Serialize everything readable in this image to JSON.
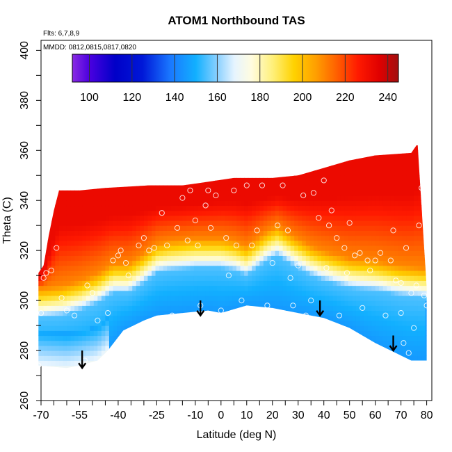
{
  "chart_data": {
    "type": "heatmap",
    "title": "ATOM1 Northbound TAS",
    "flights_note": "Flts: 6,7,8,9",
    "dates_note": "MMDD: 0812,0815,0817,0820",
    "xlabel": "Latitude (deg N)",
    "ylabel": "Theta (C)",
    "xlim": [
      -70,
      82
    ],
    "ylim": [
      260,
      404
    ],
    "x_tick_labels": [
      "-70",
      "-55",
      "-40",
      "-25",
      "-10",
      "0",
      "10",
      "20",
      "30",
      "40",
      "50",
      "60",
      "70",
      "80"
    ],
    "x_tick_values": [
      -70,
      -55,
      -40,
      -25,
      -10,
      0,
      10,
      20,
      30,
      40,
      50,
      60,
      70,
      80
    ],
    "y_ticks": [
      260,
      280,
      300,
      320,
      340,
      360,
      380,
      400
    ],
    "colorbar": {
      "min": 92,
      "max": 245,
      "ticks": [
        100,
        120,
        140,
        160,
        180,
        200,
        220,
        240
      ],
      "stops": [
        {
          "v": 92,
          "c": "#8a2be2"
        },
        {
          "v": 100,
          "c": "#4b00e0"
        },
        {
          "v": 112,
          "c": "#0000c8"
        },
        {
          "v": 125,
          "c": "#0018d8"
        },
        {
          "v": 138,
          "c": "#1a78ff"
        },
        {
          "v": 150,
          "c": "#12b0ff"
        },
        {
          "v": 160,
          "c": "#8ad0ff"
        },
        {
          "v": 168,
          "c": "#e6f4ff"
        },
        {
          "v": 176,
          "c": "#fffce0"
        },
        {
          "v": 186,
          "c": "#fff07a"
        },
        {
          "v": 196,
          "c": "#ffd200"
        },
        {
          "v": 206,
          "c": "#ffa000"
        },
        {
          "v": 216,
          "c": "#ff6000"
        },
        {
          "v": 226,
          "c": "#ff1a00"
        },
        {
          "v": 236,
          "c": "#e00000"
        },
        {
          "v": 245,
          "c": "#a01010"
        }
      ]
    },
    "field": {
      "top_boundary": [
        [
          -71,
          311
        ],
        [
          -69,
          314
        ],
        [
          -67,
          326
        ],
        [
          -65,
          336
        ],
        [
          -63,
          344
        ],
        [
          -55,
          344
        ],
        [
          -45,
          345
        ],
        [
          -28,
          346
        ],
        [
          -15,
          346
        ],
        [
          -8,
          347
        ],
        [
          5,
          349
        ],
        [
          20,
          349
        ],
        [
          30,
          350
        ],
        [
          40,
          353
        ],
        [
          50,
          356
        ],
        [
          60,
          358
        ],
        [
          74,
          359
        ],
        [
          76,
          362
        ],
        [
          76.5,
          362
        ]
      ],
      "bottom_boundary": [
        [
          -71,
          274
        ],
        [
          -60,
          273
        ],
        [
          -55,
          274
        ],
        [
          -48,
          276
        ],
        [
          -44,
          280
        ],
        [
          -38,
          288
        ],
        [
          -30,
          292
        ],
        [
          -25,
          294
        ],
        [
          -15,
          295
        ],
        [
          -5,
          296
        ],
        [
          0,
          295
        ],
        [
          10,
          298
        ],
        [
          20,
          297
        ],
        [
          30,
          295
        ],
        [
          40,
          293
        ],
        [
          50,
          289
        ],
        [
          60,
          283
        ],
        [
          68,
          279
        ],
        [
          74,
          276
        ],
        [
          80,
          276
        ],
        [
          80,
          305
        ]
      ],
      "warm_cold_boundary": [
        [
          -71,
          297
        ],
        [
          -62,
          298
        ],
        [
          -55,
          300
        ],
        [
          -48,
          303
        ],
        [
          -42,
          307
        ],
        [
          -36,
          307
        ],
        [
          -30,
          311
        ],
        [
          -25,
          315
        ],
        [
          -20,
          316
        ],
        [
          -10,
          317
        ],
        [
          0,
          317
        ],
        [
          5,
          316
        ],
        [
          10,
          314
        ],
        [
          18,
          320
        ],
        [
          22,
          322
        ],
        [
          28,
          318
        ],
        [
          35,
          314
        ],
        [
          40,
          312
        ],
        [
          50,
          309
        ],
        [
          60,
          308
        ],
        [
          70,
          306
        ],
        [
          80,
          305
        ]
      ],
      "values": {
        "warm_top": 232,
        "warm_mid": 210,
        "transition": 178,
        "cold_upper": 155,
        "cold_lower": 145,
        "bottom_white": 170
      }
    },
    "points": [
      [
        -71,
        274
      ],
      [
        -70,
        295
      ],
      [
        -69,
        309
      ],
      [
        -68,
        311
      ],
      [
        -66,
        312
      ],
      [
        -64,
        321
      ],
      [
        -62,
        301
      ],
      [
        -60,
        296
      ],
      [
        -57,
        294
      ],
      [
        -56,
        272
      ],
      [
        -54,
        273
      ],
      [
        -53,
        276
      ],
      [
        -52,
        306
      ],
      [
        -50,
        303
      ],
      [
        -48,
        292
      ],
      [
        -46,
        276
      ],
      [
        -44,
        295
      ],
      [
        -42,
        316
      ],
      [
        -40,
        318
      ],
      [
        -39,
        320
      ],
      [
        -37,
        315
      ],
      [
        -36,
        310
      ],
      [
        -34,
        288
      ],
      [
        -32,
        322
      ],
      [
        -30,
        325
      ],
      [
        -28,
        320
      ],
      [
        -26,
        321
      ],
      [
        -25,
        291
      ],
      [
        -23,
        335
      ],
      [
        -21,
        322
      ],
      [
        -19,
        294
      ],
      [
        -17,
        329
      ],
      [
        -15,
        341
      ],
      [
        -13,
        324
      ],
      [
        -12,
        344
      ],
      [
        -10,
        332
      ],
      [
        -9,
        322
      ],
      [
        -8,
        298
      ],
      [
        -6,
        338
      ],
      [
        -5,
        344
      ],
      [
        -4,
        329
      ],
      [
        -2,
        342
      ],
      [
        0,
        296
      ],
      [
        2,
        325
      ],
      [
        3,
        310
      ],
      [
        5,
        344
      ],
      [
        6,
        322
      ],
      [
        8,
        300
      ],
      [
        10,
        346
      ],
      [
        12,
        322
      ],
      [
        14,
        328
      ],
      [
        16,
        346
      ],
      [
        18,
        298
      ],
      [
        20,
        315
      ],
      [
        22,
        330
      ],
      [
        24,
        346
      ],
      [
        26,
        328
      ],
      [
        27,
        309
      ],
      [
        28,
        298
      ],
      [
        30,
        314
      ],
      [
        32,
        342
      ],
      [
        33,
        294
      ],
      [
        35,
        300
      ],
      [
        36,
        343
      ],
      [
        38,
        333
      ],
      [
        40,
        348
      ],
      [
        41,
        313
      ],
      [
        42,
        330
      ],
      [
        43,
        336
      ],
      [
        45,
        325
      ],
      [
        46,
        294
      ],
      [
        48,
        321
      ],
      [
        49,
        311
      ],
      [
        50,
        331
      ],
      [
        52,
        318
      ],
      [
        54,
        319
      ],
      [
        55,
        297
      ],
      [
        57,
        316
      ],
      [
        58,
        312
      ],
      [
        60,
        316
      ],
      [
        62,
        319
      ],
      [
        64,
        294
      ],
      [
        66,
        316
      ],
      [
        67,
        328
      ],
      [
        68,
        308
      ],
      [
        70,
        307
      ],
      [
        70,
        295
      ],
      [
        71,
        283
      ],
      [
        72,
        321
      ],
      [
        73,
        279
      ],
      [
        74,
        303
      ],
      [
        75,
        289
      ],
      [
        76,
        306
      ],
      [
        77,
        330
      ],
      [
        78,
        345
      ],
      [
        79,
        302
      ],
      [
        80,
        298
      ]
    ],
    "arrows": [
      {
        "x": -54,
        "y_top": 280,
        "y_tip": 273
      },
      {
        "x": -8,
        "y_top": 300,
        "y_tip": 294
      },
      {
        "x": 38.5,
        "y_top": 300,
        "y_tip": 294
      },
      {
        "x": 67,
        "y_top": 286,
        "y_tip": 280
      }
    ]
  }
}
